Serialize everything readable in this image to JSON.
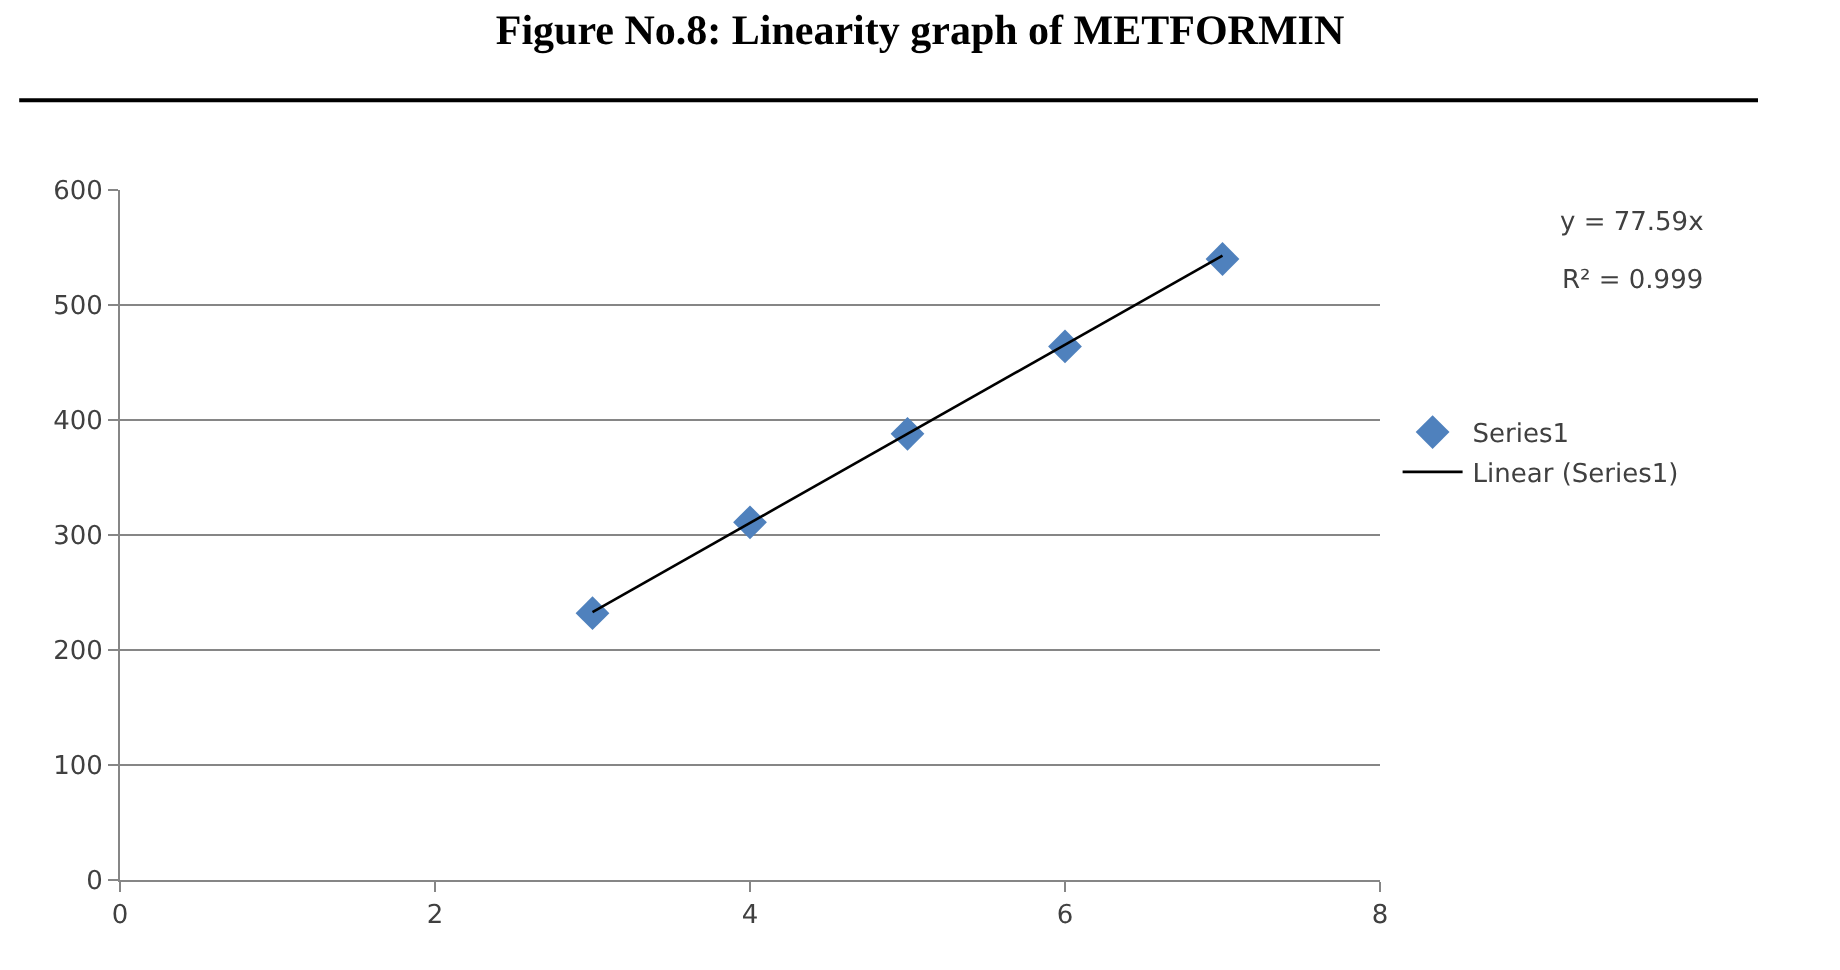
{
  "chart_data": {
    "type": "scatter",
    "title": "Figure No.8: Linearity graph of METFORMIN",
    "x": [
      3,
      4,
      5,
      6,
      7
    ],
    "series": [
      {
        "name": "Series1",
        "color": "#4f81bd",
        "values": [
          232,
          311,
          388,
          464,
          540
        ],
        "marker": "diamond"
      },
      {
        "name": "Linear (Series1)",
        "type": "line",
        "color": "#000000",
        "x": [
          3,
          7
        ],
        "values": [
          233,
          543
        ]
      }
    ],
    "annotations": [
      "y = 77.59x",
      "R² = 0.999"
    ],
    "xlim": [
      0,
      8
    ],
    "xticks": [
      0,
      2,
      4,
      6,
      8
    ],
    "ylim": [
      0,
      600
    ],
    "yticks": [
      0,
      100,
      200,
      300,
      400,
      500,
      600
    ],
    "grid": "y",
    "legend": "right"
  }
}
